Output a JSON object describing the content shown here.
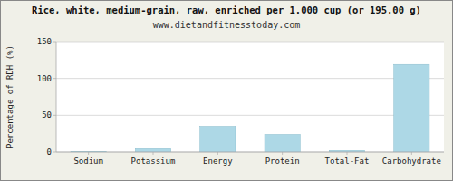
{
  "chart_data": {
    "type": "bar",
    "title": "Rice, white, medium-grain, raw, enriched per 1.000 cup (or 195.00 g)",
    "subtitle": "www.dietandfitnesstoday.com",
    "ylabel": "Percentage of RDH (%)",
    "categories": [
      "Sodium",
      "Potassium",
      "Energy",
      "Protein",
      "Total-Fat",
      "Carbohydrate"
    ],
    "values": [
      0.4,
      4.5,
      35.0,
      24.0,
      2.0,
      119.0
    ],
    "color": "#add8e6",
    "ylim": [
      0,
      150
    ],
    "yticks": [
      0,
      50,
      100,
      150
    ],
    "grid": true
  }
}
